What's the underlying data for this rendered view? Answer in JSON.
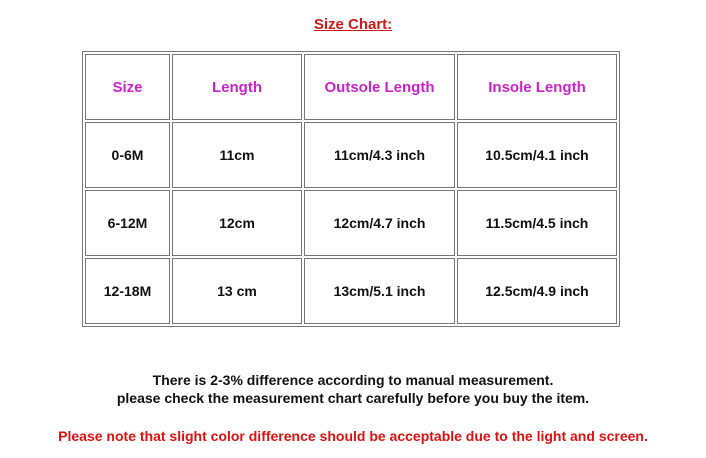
{
  "title": "Size Chart:",
  "table": {
    "headers": [
      "Size",
      "Length",
      "Outsole Length",
      "Insole Length"
    ],
    "rows": [
      [
        "0-6M",
        "11cm",
        "11cm/4.3 inch",
        "10.5cm/4.1 inch"
      ],
      [
        "6-12M",
        "12cm",
        "12cm/4.7 inch",
        "11.5cm/4.5 inch"
      ],
      [
        "12-18M",
        "13 cm",
        "13cm/5.1 inch",
        "12.5cm/4.9 inch"
      ]
    ]
  },
  "notes": [
    "There is 2-3% difference according to manual measurement.",
    "please check the measurement chart carefully before you buy the item."
  ],
  "color_note": "Please note that slight color difference should be acceptable due to the light and screen.",
  "colors": {
    "title": "#d01818",
    "header": "#cc22cc",
    "warning": "#e01010"
  }
}
